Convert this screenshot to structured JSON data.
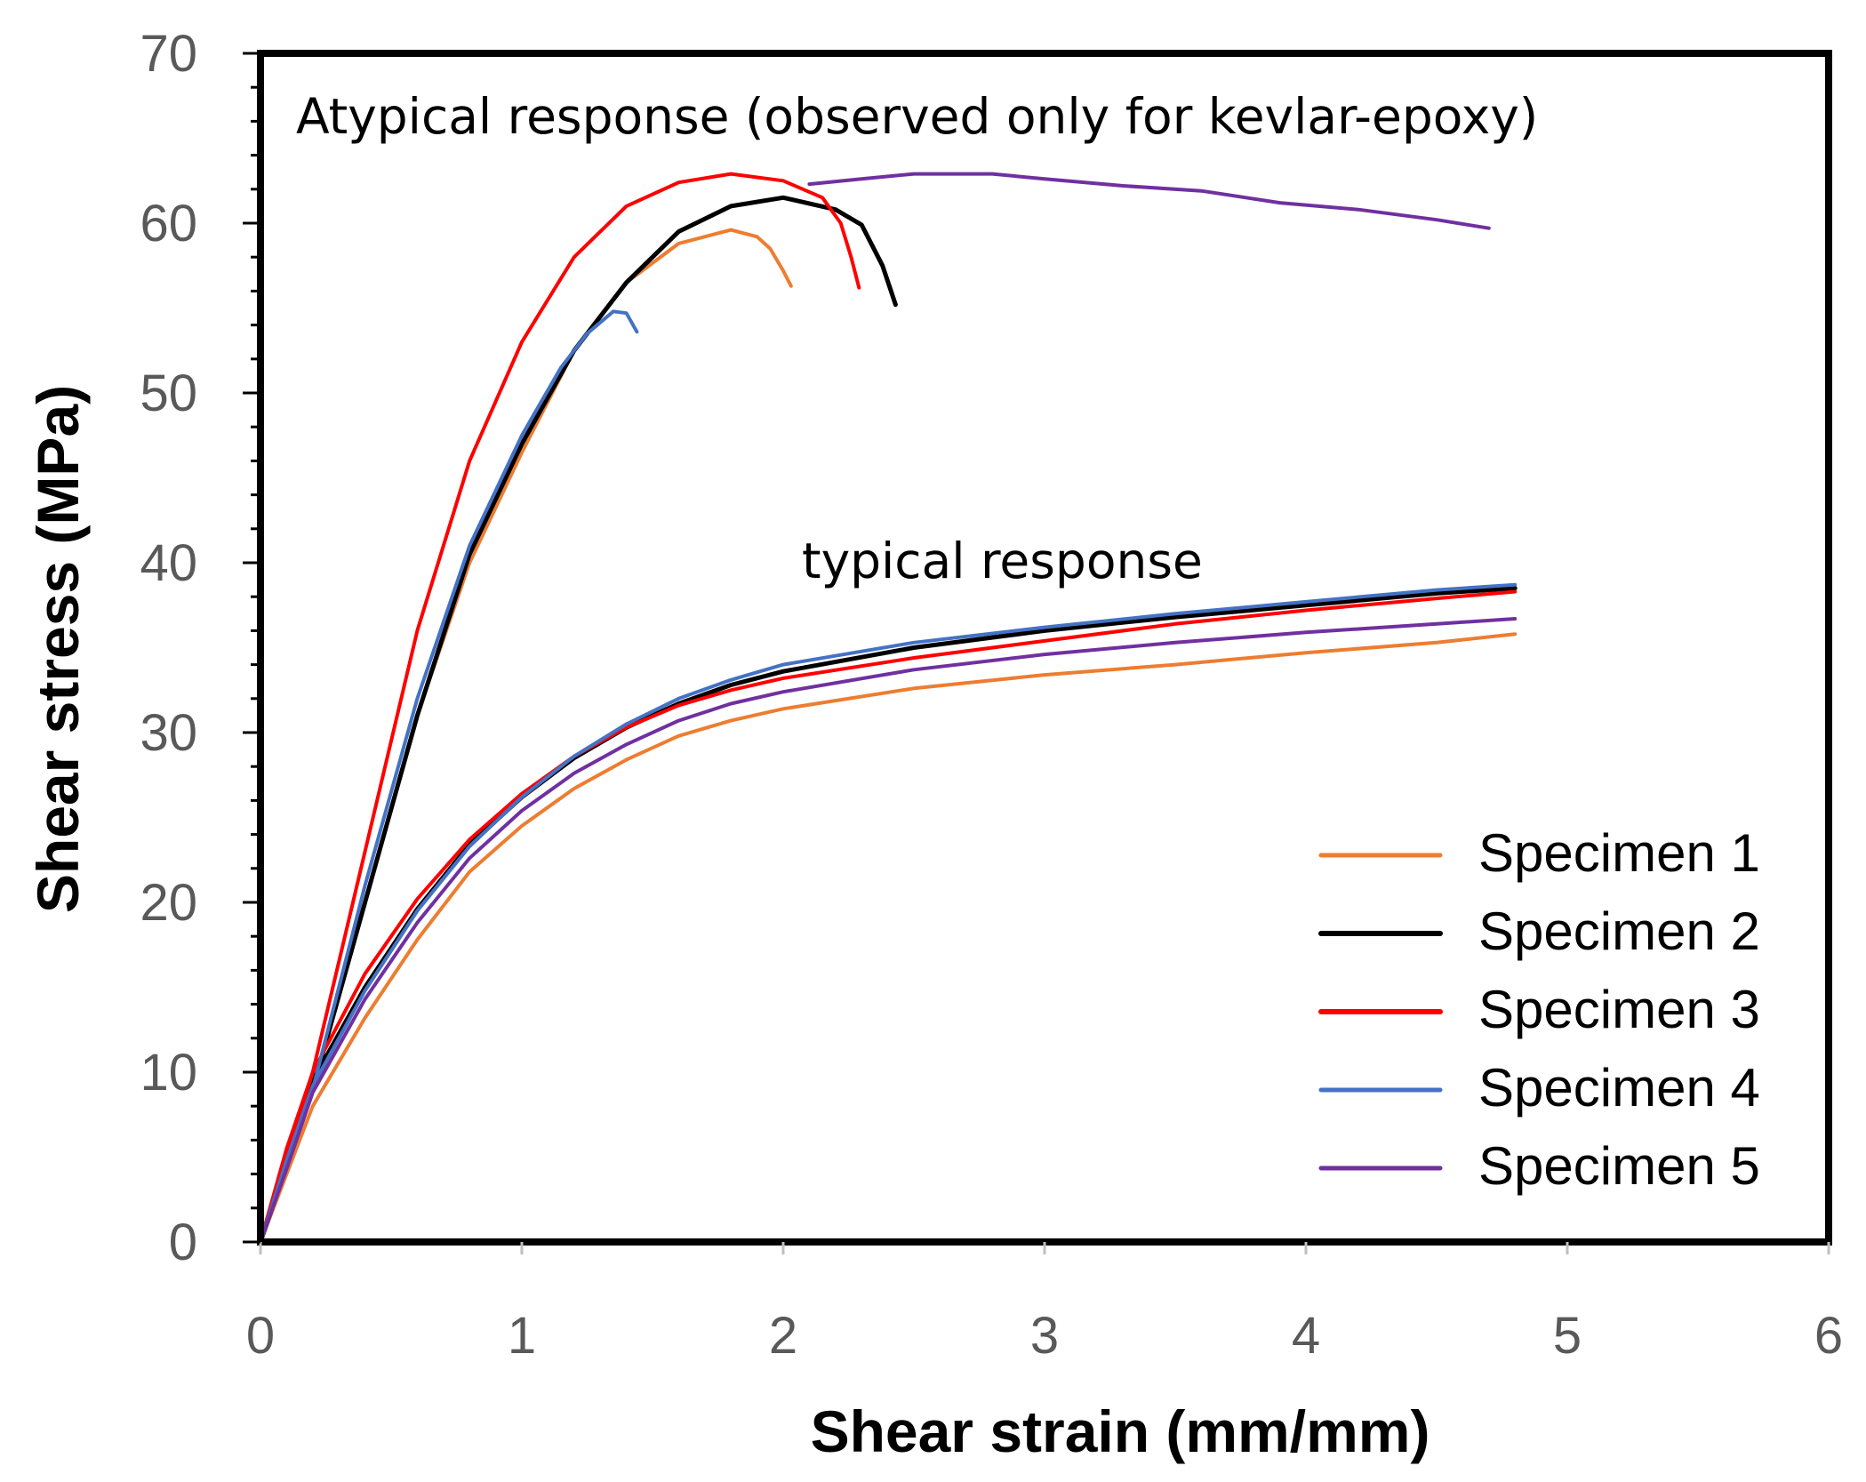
{
  "chart_data": {
    "type": "line",
    "title": "",
    "xlabel": "Shear strain (mm/mm)",
    "ylabel": "Shear stress (MPa)",
    "xlim": [
      0,
      6
    ],
    "ylim": [
      0,
      70
    ],
    "x_ticks": [
      "0",
      "1",
      "2",
      "3",
      "4",
      "5",
      "6"
    ],
    "y_ticks": [
      "0",
      "10",
      "20",
      "30",
      "40",
      "50",
      "60",
      "70"
    ],
    "grid": false,
    "legend_position": "bottom-right",
    "annotations": [
      {
        "id": "atypical",
        "text": "Atypical response (observed only for kevlar-epoxy)",
        "x": 0.15,
        "y": 66.3
      },
      {
        "id": "typical",
        "text": "typical response",
        "x": 2.08,
        "y": 39.5
      }
    ],
    "series": [
      {
        "name": "Specimen 1",
        "color": "#ED7D31",
        "legend_stroke": 5,
        "typical": [
          [
            0,
            0
          ],
          [
            0.1,
            4
          ],
          [
            0.2,
            8
          ],
          [
            0.4,
            13.2
          ],
          [
            0.6,
            17.8
          ],
          [
            0.8,
            21.8
          ],
          [
            1.0,
            24.5
          ],
          [
            1.2,
            26.7
          ],
          [
            1.4,
            28.4
          ],
          [
            1.6,
            29.8
          ],
          [
            1.8,
            30.7
          ],
          [
            2.0,
            31.4
          ],
          [
            2.5,
            32.6
          ],
          [
            3.0,
            33.4
          ],
          [
            3.5,
            34.0
          ],
          [
            4.0,
            34.7
          ],
          [
            4.5,
            35.3
          ],
          [
            4.8,
            35.8
          ]
        ],
        "atypical": [
          [
            0,
            0
          ],
          [
            0.2,
            9
          ],
          [
            0.4,
            20
          ],
          [
            0.6,
            31
          ],
          [
            0.8,
            40
          ],
          [
            1.0,
            46.5
          ],
          [
            1.2,
            52.5
          ],
          [
            1.4,
            56.5
          ],
          [
            1.6,
            58.8
          ],
          [
            1.8,
            59.6
          ],
          [
            1.9,
            59.2
          ],
          [
            1.95,
            58.5
          ],
          [
            2.0,
            57.2
          ],
          [
            2.03,
            56.3
          ]
        ]
      },
      {
        "name": "Specimen 2",
        "color": "#000000",
        "legend_stroke": 6,
        "typical": [
          [
            0,
            0
          ],
          [
            0.1,
            5
          ],
          [
            0.2,
            9.5
          ],
          [
            0.4,
            15
          ],
          [
            0.6,
            19.6
          ],
          [
            0.8,
            23.4
          ],
          [
            1.0,
            26.2
          ],
          [
            1.2,
            28.5
          ],
          [
            1.4,
            30.3
          ],
          [
            1.6,
            31.7
          ],
          [
            1.8,
            32.8
          ],
          [
            2.0,
            33.6
          ],
          [
            2.5,
            35.0
          ],
          [
            3.0,
            36.0
          ],
          [
            3.5,
            36.8
          ],
          [
            4.0,
            37.5
          ],
          [
            4.5,
            38.2
          ],
          [
            4.8,
            38.5
          ]
        ],
        "atypical": [
          [
            0,
            0
          ],
          [
            0.2,
            9
          ],
          [
            0.4,
            20
          ],
          [
            0.6,
            31
          ],
          [
            0.8,
            40.5
          ],
          [
            1.0,
            47
          ],
          [
            1.2,
            52.5
          ],
          [
            1.4,
            56.5
          ],
          [
            1.6,
            59.5
          ],
          [
            1.8,
            61
          ],
          [
            2.0,
            61.5
          ],
          [
            2.2,
            60.8
          ],
          [
            2.3,
            59.9
          ],
          [
            2.38,
            57.5
          ],
          [
            2.43,
            55.2
          ]
        ]
      },
      {
        "name": "Specimen 3",
        "color": "#FF0000",
        "legend_stroke": 6,
        "typical": [
          [
            0,
            0
          ],
          [
            0.1,
            5.5
          ],
          [
            0.2,
            10
          ],
          [
            0.4,
            15.8
          ],
          [
            0.6,
            20.2
          ],
          [
            0.8,
            23.7
          ],
          [
            1.0,
            26.4
          ],
          [
            1.2,
            28.6
          ],
          [
            1.4,
            30.3
          ],
          [
            1.6,
            31.6
          ],
          [
            1.8,
            32.5
          ],
          [
            2.0,
            33.2
          ],
          [
            2.5,
            34.4
          ],
          [
            3.0,
            35.4
          ],
          [
            3.5,
            36.4
          ],
          [
            4.0,
            37.2
          ],
          [
            4.5,
            37.9
          ],
          [
            4.8,
            38.3
          ]
        ],
        "atypical": [
          [
            0,
            0
          ],
          [
            0.2,
            10
          ],
          [
            0.4,
            23
          ],
          [
            0.6,
            36
          ],
          [
            0.8,
            46
          ],
          [
            1.0,
            53
          ],
          [
            1.2,
            58
          ],
          [
            1.4,
            61
          ],
          [
            1.6,
            62.4
          ],
          [
            1.8,
            62.9
          ],
          [
            2.0,
            62.5
          ],
          [
            2.15,
            61.5
          ],
          [
            2.22,
            60
          ],
          [
            2.26,
            58
          ],
          [
            2.29,
            56.2
          ]
        ]
      },
      {
        "name": "Specimen 4",
        "color": "#4472C4",
        "legend_stroke": 5,
        "typical": [
          [
            0,
            0
          ],
          [
            0.1,
            4.8
          ],
          [
            0.2,
            9.2
          ],
          [
            0.4,
            14.8
          ],
          [
            0.6,
            19.5
          ],
          [
            0.8,
            23.3
          ],
          [
            1.0,
            26.2
          ],
          [
            1.2,
            28.6
          ],
          [
            1.4,
            30.5
          ],
          [
            1.6,
            32.0
          ],
          [
            1.8,
            33.1
          ],
          [
            2.0,
            34.0
          ],
          [
            2.5,
            35.3
          ],
          [
            3.0,
            36.2
          ],
          [
            3.5,
            37.0
          ],
          [
            4.0,
            37.7
          ],
          [
            4.5,
            38.4
          ],
          [
            4.8,
            38.7
          ]
        ],
        "atypical": [
          [
            0,
            0
          ],
          [
            0.2,
            9
          ],
          [
            0.4,
            21
          ],
          [
            0.6,
            32
          ],
          [
            0.8,
            41
          ],
          [
            1.0,
            47.5
          ],
          [
            1.15,
            51.5
          ],
          [
            1.25,
            53.5
          ],
          [
            1.35,
            54.8
          ],
          [
            1.4,
            54.7
          ],
          [
            1.44,
            53.6
          ]
        ]
      },
      {
        "name": "Specimen 5",
        "color": "#7030A0",
        "legend_stroke": 5,
        "typical": [
          [
            0,
            0
          ],
          [
            0.1,
            4.3
          ],
          [
            0.2,
            8.8
          ],
          [
            0.4,
            14.3
          ],
          [
            0.6,
            18.8
          ],
          [
            0.8,
            22.6
          ],
          [
            1.0,
            25.4
          ],
          [
            1.2,
            27.6
          ],
          [
            1.4,
            29.3
          ],
          [
            1.6,
            30.7
          ],
          [
            1.8,
            31.7
          ],
          [
            2.0,
            32.4
          ],
          [
            2.5,
            33.7
          ],
          [
            3.0,
            34.6
          ],
          [
            3.5,
            35.3
          ],
          [
            4.0,
            35.9
          ],
          [
            4.5,
            36.4
          ],
          [
            4.8,
            36.7
          ]
        ],
        "atypical": [
          [
            2.1,
            62.3
          ],
          [
            2.3,
            62.6
          ],
          [
            2.5,
            62.9
          ],
          [
            2.8,
            62.9
          ],
          [
            3.0,
            62.6
          ],
          [
            3.3,
            62.2
          ],
          [
            3.6,
            61.9
          ],
          [
            3.9,
            61.2
          ],
          [
            4.2,
            60.8
          ],
          [
            4.5,
            60.2
          ],
          [
            4.7,
            59.7
          ]
        ]
      }
    ]
  }
}
